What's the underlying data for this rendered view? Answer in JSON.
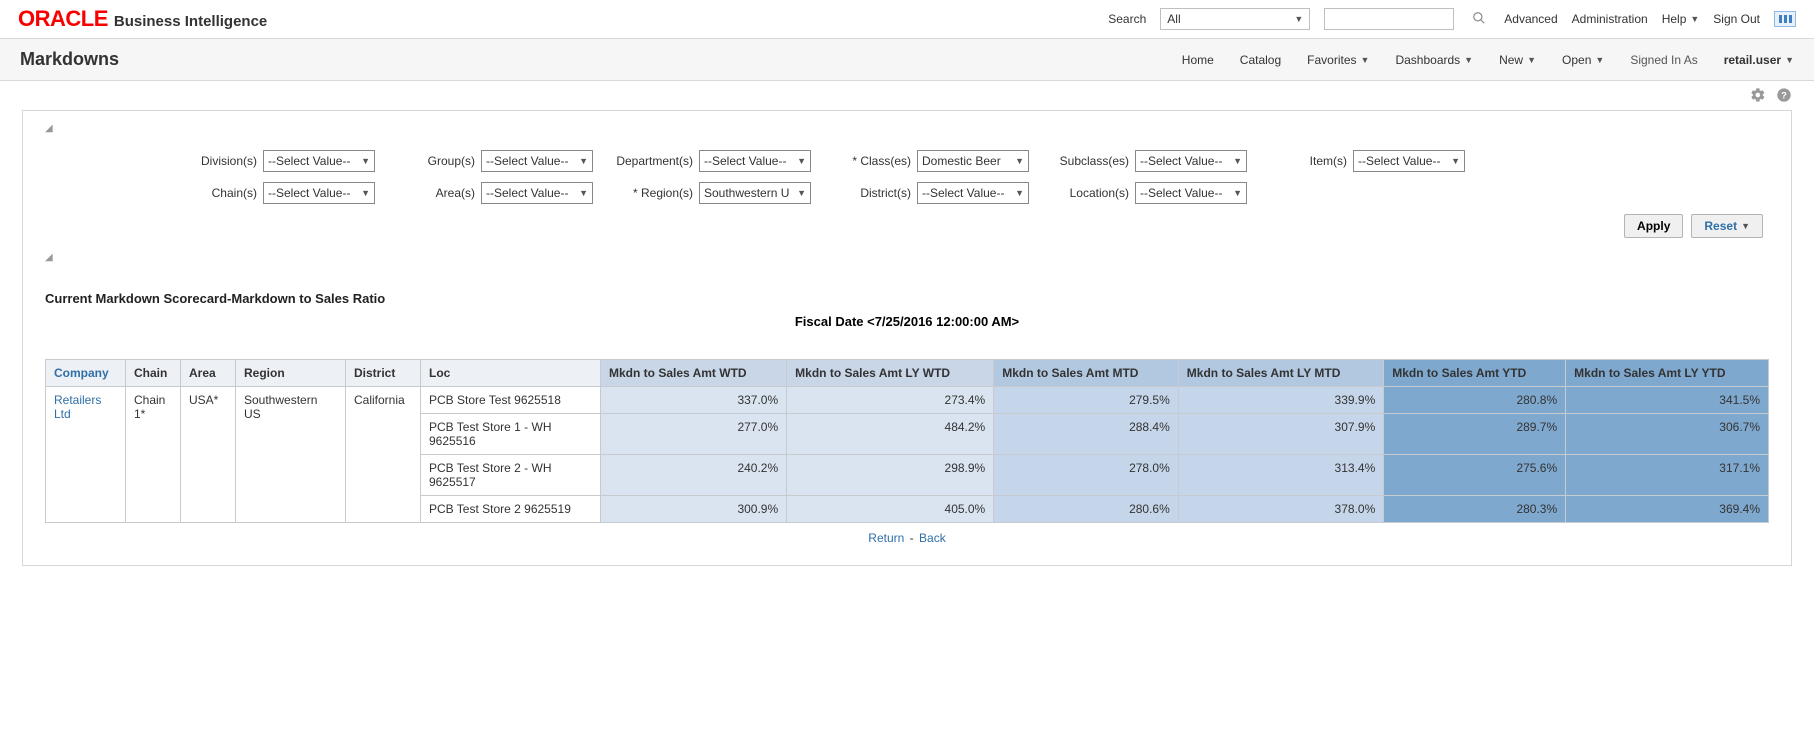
{
  "brand": {
    "oracle": "ORACLE",
    "suffix": "Business Intelligence"
  },
  "search": {
    "label": "Search",
    "scope": "All",
    "placeholder": ""
  },
  "topLinks": {
    "advanced": "Advanced",
    "administration": "Administration",
    "help": "Help",
    "signOut": "Sign Out"
  },
  "pageTitle": "Markdowns",
  "nav": {
    "home": "Home",
    "catalog": "Catalog",
    "favorites": "Favorites",
    "dashboards": "Dashboards",
    "new": "New",
    "open": "Open",
    "signedInAs": "Signed In As",
    "user": "retail.user"
  },
  "filters": {
    "row1": [
      {
        "label": "Division(s)",
        "value": "--Select Value--"
      },
      {
        "label": "Group(s)",
        "value": "--Select Value--"
      },
      {
        "label": "Department(s)",
        "value": "--Select Value--"
      },
      {
        "label": "* Class(es)",
        "value": "Domestic Beer"
      },
      {
        "label": "Subclass(es)",
        "value": "--Select Value--"
      },
      {
        "label": "Item(s)",
        "value": "--Select Value--"
      }
    ],
    "row2": [
      {
        "label": "Chain(s)",
        "value": "--Select Value--"
      },
      {
        "label": "Area(s)",
        "value": "--Select Value--"
      },
      {
        "label": "* Region(s)",
        "value": "Southwestern U"
      },
      {
        "label": "District(s)",
        "value": "--Select Value--"
      },
      {
        "label": "Location(s)",
        "value": "--Select Value--"
      }
    ]
  },
  "actions": {
    "apply": "Apply",
    "reset": "Reset"
  },
  "report": {
    "title": "Current Markdown Scorecard-Markdown to Sales Ratio",
    "fiscalDate": "Fiscal Date <7/25/2016 12:00:00 AM>"
  },
  "table": {
    "headers": {
      "company": "Company",
      "chain": "Chain",
      "area": "Area",
      "region": "Region",
      "district": "District",
      "loc": "Loc",
      "m1": "Mkdn to Sales Amt WTD",
      "m2": "Mkdn to Sales Amt LY WTD",
      "m3": "Mkdn to Sales Amt MTD",
      "m4": "Mkdn to Sales Amt LY MTD",
      "m5": "Mkdn to Sales Amt YTD",
      "m6": "Mkdn to Sales Amt LY YTD"
    },
    "colors": {
      "header_bg": "#edf1f5",
      "wtd_header": "#c8d6e8",
      "wtd_cell": "#dae4f0",
      "mtd_header": "#b2c8e0",
      "mtd_cell": "#c6d6ea",
      "ytd_header": "#7fa8cf",
      "ytd_cell": "#7fa8cf",
      "border": "#c7cbd0",
      "link": "#2f6fa7"
    },
    "group": {
      "company": "Retailers Ltd",
      "chain": "Chain 1*",
      "area": "USA*",
      "region": "Southwestern US",
      "district": "California"
    },
    "rows": [
      {
        "loc": "PCB Store Test 9625518",
        "wtd": "337.0%",
        "wtdLY": "273.4%",
        "mtd": "279.5%",
        "mtdLY": "339.9%",
        "ytd": "280.8%",
        "ytdLY": "341.5%"
      },
      {
        "loc": "PCB Test Store 1 - WH 9625516",
        "wtd": "277.0%",
        "wtdLY": "484.2%",
        "mtd": "288.4%",
        "mtdLY": "307.9%",
        "ytd": "289.7%",
        "ytdLY": "306.7%"
      },
      {
        "loc": "PCB Test Store 2 - WH 9625517",
        "wtd": "240.2%",
        "wtdLY": "298.9%",
        "mtd": "278.0%",
        "mtdLY": "313.4%",
        "ytd": "275.6%",
        "ytdLY": "317.1%"
      },
      {
        "loc": "PCB Test Store 2 9625519",
        "wtd": "300.9%",
        "wtdLY": "405.0%",
        "mtd": "280.6%",
        "mtdLY": "378.0%",
        "ytd": "280.3%",
        "ytdLY": "369.4%"
      }
    ]
  },
  "footer": {
    "return": "Return",
    "back": "Back",
    "sep": " - "
  }
}
